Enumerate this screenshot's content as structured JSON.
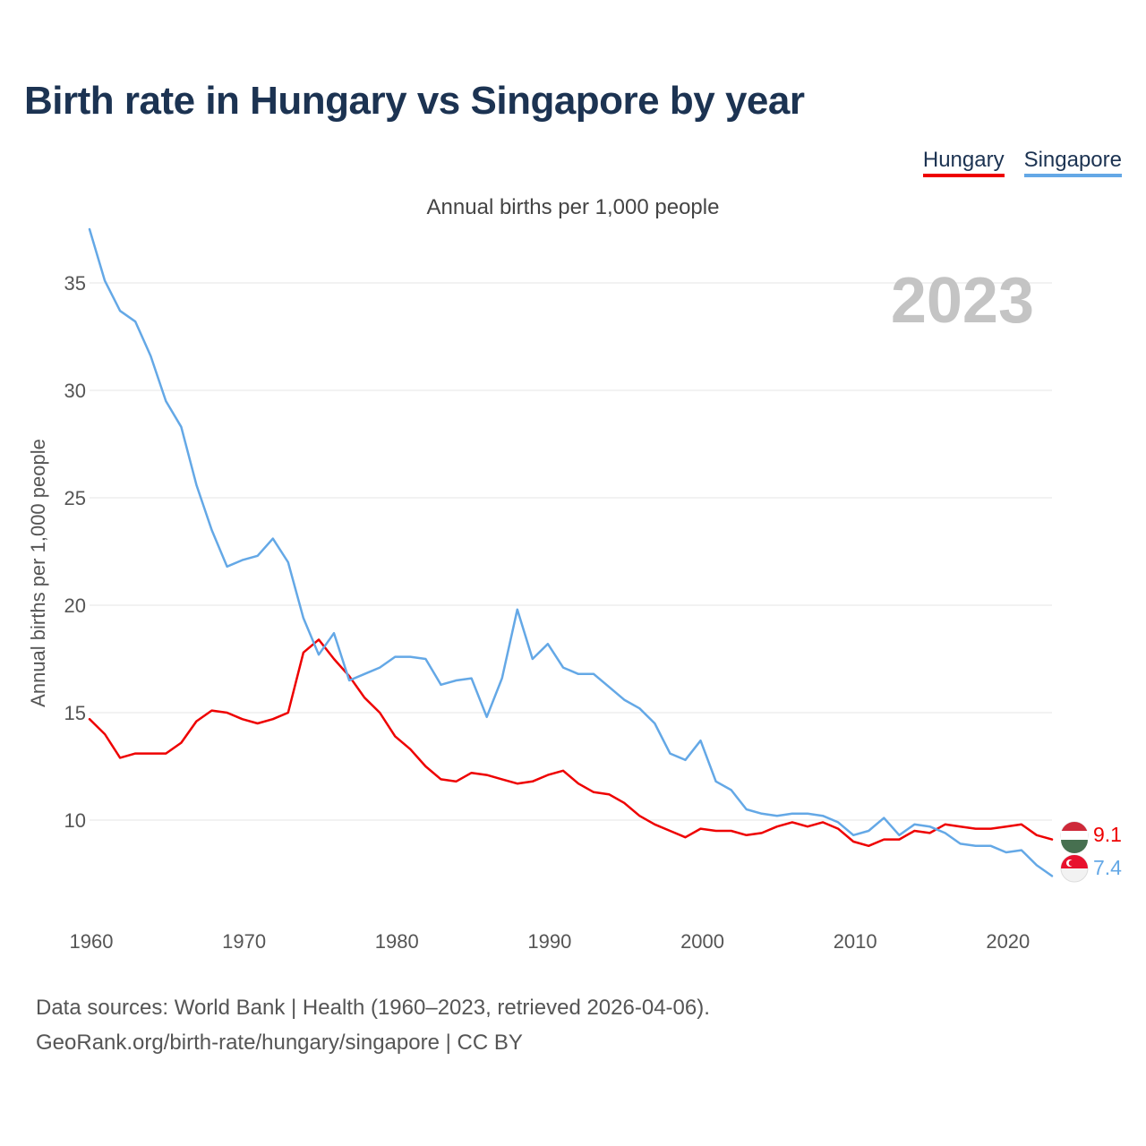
{
  "title": "Birth rate in Hungary vs Singapore by year",
  "subtitle": "Annual births per 1,000 people",
  "legend": [
    {
      "name": "Hungary",
      "color": "#ee0000"
    },
    {
      "name": "Singapore",
      "color": "#64a8e6"
    }
  ],
  "year_watermark": "2023",
  "footer": {
    "line1": "Data sources: World Bank | Health (1960–2023, retrieved 2026-04-06).",
    "line2": "GeoRank.org/birth-rate/hungary/singapore | CC BY"
  },
  "end_labels": {
    "hungary": "9.1",
    "singapore": "7.4"
  },
  "chart_data": {
    "type": "line",
    "title": "Birth rate in Hungary vs Singapore by year",
    "subtitle": "Annual births per 1,000 people",
    "xlabel": "",
    "ylabel": "Annual births per 1,000 people",
    "xlim": [
      1960,
      2023
    ],
    "ylim": [
      5.5,
      37.5
    ],
    "xticks": [
      1960,
      1970,
      1980,
      1990,
      2000,
      2010,
      2020
    ],
    "yticks": [
      10,
      15,
      20,
      25,
      30,
      35
    ],
    "grid": true,
    "legend_position": "top-right",
    "x": [
      1960,
      1961,
      1962,
      1963,
      1964,
      1965,
      1966,
      1967,
      1968,
      1969,
      1970,
      1971,
      1972,
      1973,
      1974,
      1975,
      1976,
      1977,
      1978,
      1979,
      1980,
      1981,
      1982,
      1983,
      1984,
      1985,
      1986,
      1987,
      1988,
      1989,
      1990,
      1991,
      1992,
      1993,
      1994,
      1995,
      1996,
      1997,
      1998,
      1999,
      2000,
      2001,
      2002,
      2003,
      2004,
      2005,
      2006,
      2007,
      2008,
      2009,
      2010,
      2011,
      2012,
      2013,
      2014,
      2015,
      2016,
      2017,
      2018,
      2019,
      2020,
      2021,
      2022,
      2023
    ],
    "series": [
      {
        "name": "Hungary",
        "color": "#ee0000",
        "values": [
          14.7,
          14.0,
          12.9,
          13.1,
          13.1,
          13.1,
          13.6,
          14.6,
          15.1,
          15.0,
          14.7,
          14.5,
          14.7,
          15.0,
          17.8,
          18.4,
          17.5,
          16.7,
          15.7,
          15.0,
          13.9,
          13.3,
          12.5,
          11.9,
          11.8,
          12.2,
          12.1,
          11.9,
          11.7,
          11.8,
          12.1,
          12.3,
          11.7,
          11.3,
          11.2,
          10.8,
          10.2,
          9.8,
          9.5,
          9.2,
          9.6,
          9.5,
          9.5,
          9.3,
          9.4,
          9.7,
          9.9,
          9.7,
          9.9,
          9.6,
          9.0,
          8.8,
          9.1,
          9.1,
          9.5,
          9.4,
          9.8,
          9.7,
          9.6,
          9.6,
          9.7,
          9.8,
          9.3,
          9.1
        ]
      },
      {
        "name": "Singapore",
        "color": "#64a8e6",
        "values": [
          37.5,
          35.1,
          33.7,
          33.2,
          31.6,
          29.5,
          28.3,
          25.6,
          23.5,
          21.8,
          22.1,
          22.3,
          23.1,
          22.0,
          19.4,
          17.7,
          18.7,
          16.5,
          16.8,
          17.1,
          17.6,
          17.6,
          17.5,
          16.3,
          16.5,
          16.6,
          14.8,
          16.6,
          19.8,
          17.5,
          18.2,
          17.1,
          16.8,
          16.8,
          16.2,
          15.6,
          15.2,
          14.5,
          13.1,
          12.8,
          13.7,
          11.8,
          11.4,
          10.5,
          10.3,
          10.2,
          10.3,
          10.3,
          10.2,
          9.9,
          9.3,
          9.5,
          10.1,
          9.3,
          9.8,
          9.7,
          9.4,
          8.9,
          8.8,
          8.8,
          8.5,
          8.6,
          7.9,
          7.4
        ]
      }
    ]
  }
}
